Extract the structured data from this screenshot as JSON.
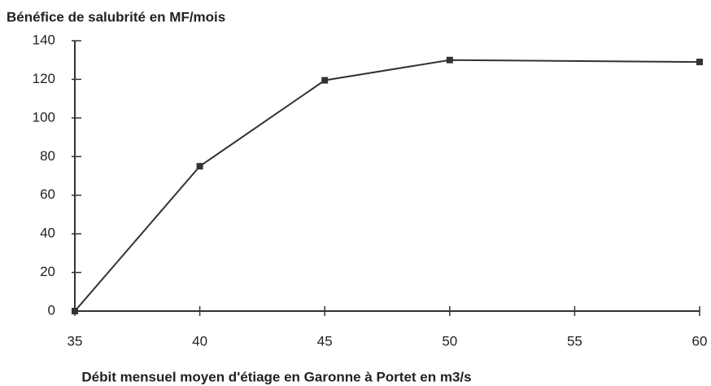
{
  "chart_data": {
    "type": "line",
    "title": "Bénéfice de salubrité en MF/mois",
    "x_label": "Débit mensuel moyen d'étiage en Garonne à Portet en m3/s",
    "x": [
      35,
      40,
      45,
      50,
      60
    ],
    "values": [
      0,
      75,
      119.5,
      130,
      129
    ],
    "color": "#333333",
    "xlim": [
      35,
      60
    ],
    "xticks": [
      35,
      40,
      45,
      50,
      55,
      60
    ],
    "ylim": [
      0,
      140
    ],
    "yticks": [
      0,
      20,
      40,
      60,
      80,
      100,
      120,
      140
    ],
    "grid": false
  }
}
